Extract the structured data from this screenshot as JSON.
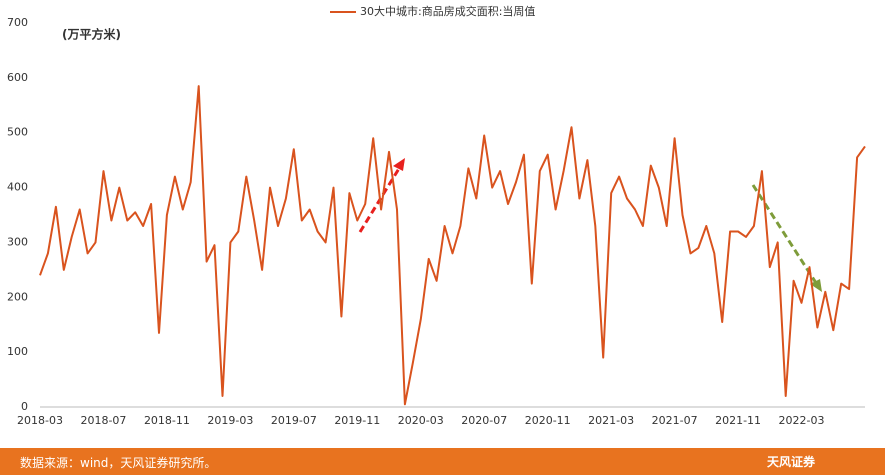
{
  "chart_data": {
    "type": "line",
    "unit": "(万平方米)",
    "categories": [
      "2018-03",
      null,
      null,
      null,
      null,
      null,
      null,
      null,
      "2018-07",
      null,
      null,
      null,
      null,
      null,
      null,
      null,
      "2018-11",
      null,
      null,
      null,
      null,
      null,
      null,
      null,
      "2019-03",
      null,
      null,
      null,
      null,
      null,
      null,
      null,
      "2019-07",
      null,
      null,
      null,
      null,
      null,
      null,
      null,
      "2019-11",
      null,
      null,
      null,
      null,
      null,
      null,
      null,
      "2020-03",
      null,
      null,
      null,
      null,
      null,
      null,
      null,
      "2020-07",
      null,
      null,
      null,
      null,
      null,
      null,
      null,
      "2020-11",
      null,
      null,
      null,
      null,
      null,
      null,
      null,
      "2021-03",
      null,
      null,
      null,
      null,
      null,
      null,
      null,
      "2021-07",
      null,
      null,
      null,
      null,
      null,
      null,
      null,
      "2021-11",
      null,
      null,
      null,
      null,
      null,
      null,
      null,
      "2022-03",
      null,
      null,
      null,
      null,
      null,
      null,
      null,
      null
    ],
    "series": [
      {
        "name": "30大中城市:商品房成交面积:当周值",
        "color": "#d9531e",
        "values": [
          240,
          280,
          365,
          250,
          310,
          360,
          280,
          300,
          430,
          340,
          400,
          340,
          355,
          330,
          370,
          135,
          350,
          420,
          360,
          410,
          585,
          265,
          295,
          20,
          300,
          320,
          420,
          340,
          250,
          400,
          330,
          380,
          470,
          340,
          360,
          320,
          300,
          400,
          165,
          390,
          340,
          370,
          490,
          360,
          465,
          360,
          5,
          80,
          160,
          270,
          230,
          330,
          280,
          330,
          435,
          380,
          495,
          400,
          430,
          370,
          410,
          460,
          225,
          430,
          460,
          360,
          430,
          510,
          380,
          450,
          330,
          90,
          390,
          420,
          380,
          360,
          330,
          440,
          400,
          330,
          490,
          350,
          280,
          290,
          330,
          280,
          155,
          320,
          320,
          310,
          330,
          430,
          255,
          300,
          20,
          230,
          190,
          255,
          145,
          210,
          140,
          225,
          215,
          455,
          475
        ]
      }
    ],
    "ylim": [
      0,
      700
    ],
    "yticks": [
      0,
      100,
      200,
      300,
      400,
      500,
      600,
      700
    ],
    "source": "数据来源：wind，天风证券研究所。",
    "logo": "天风证券"
  }
}
